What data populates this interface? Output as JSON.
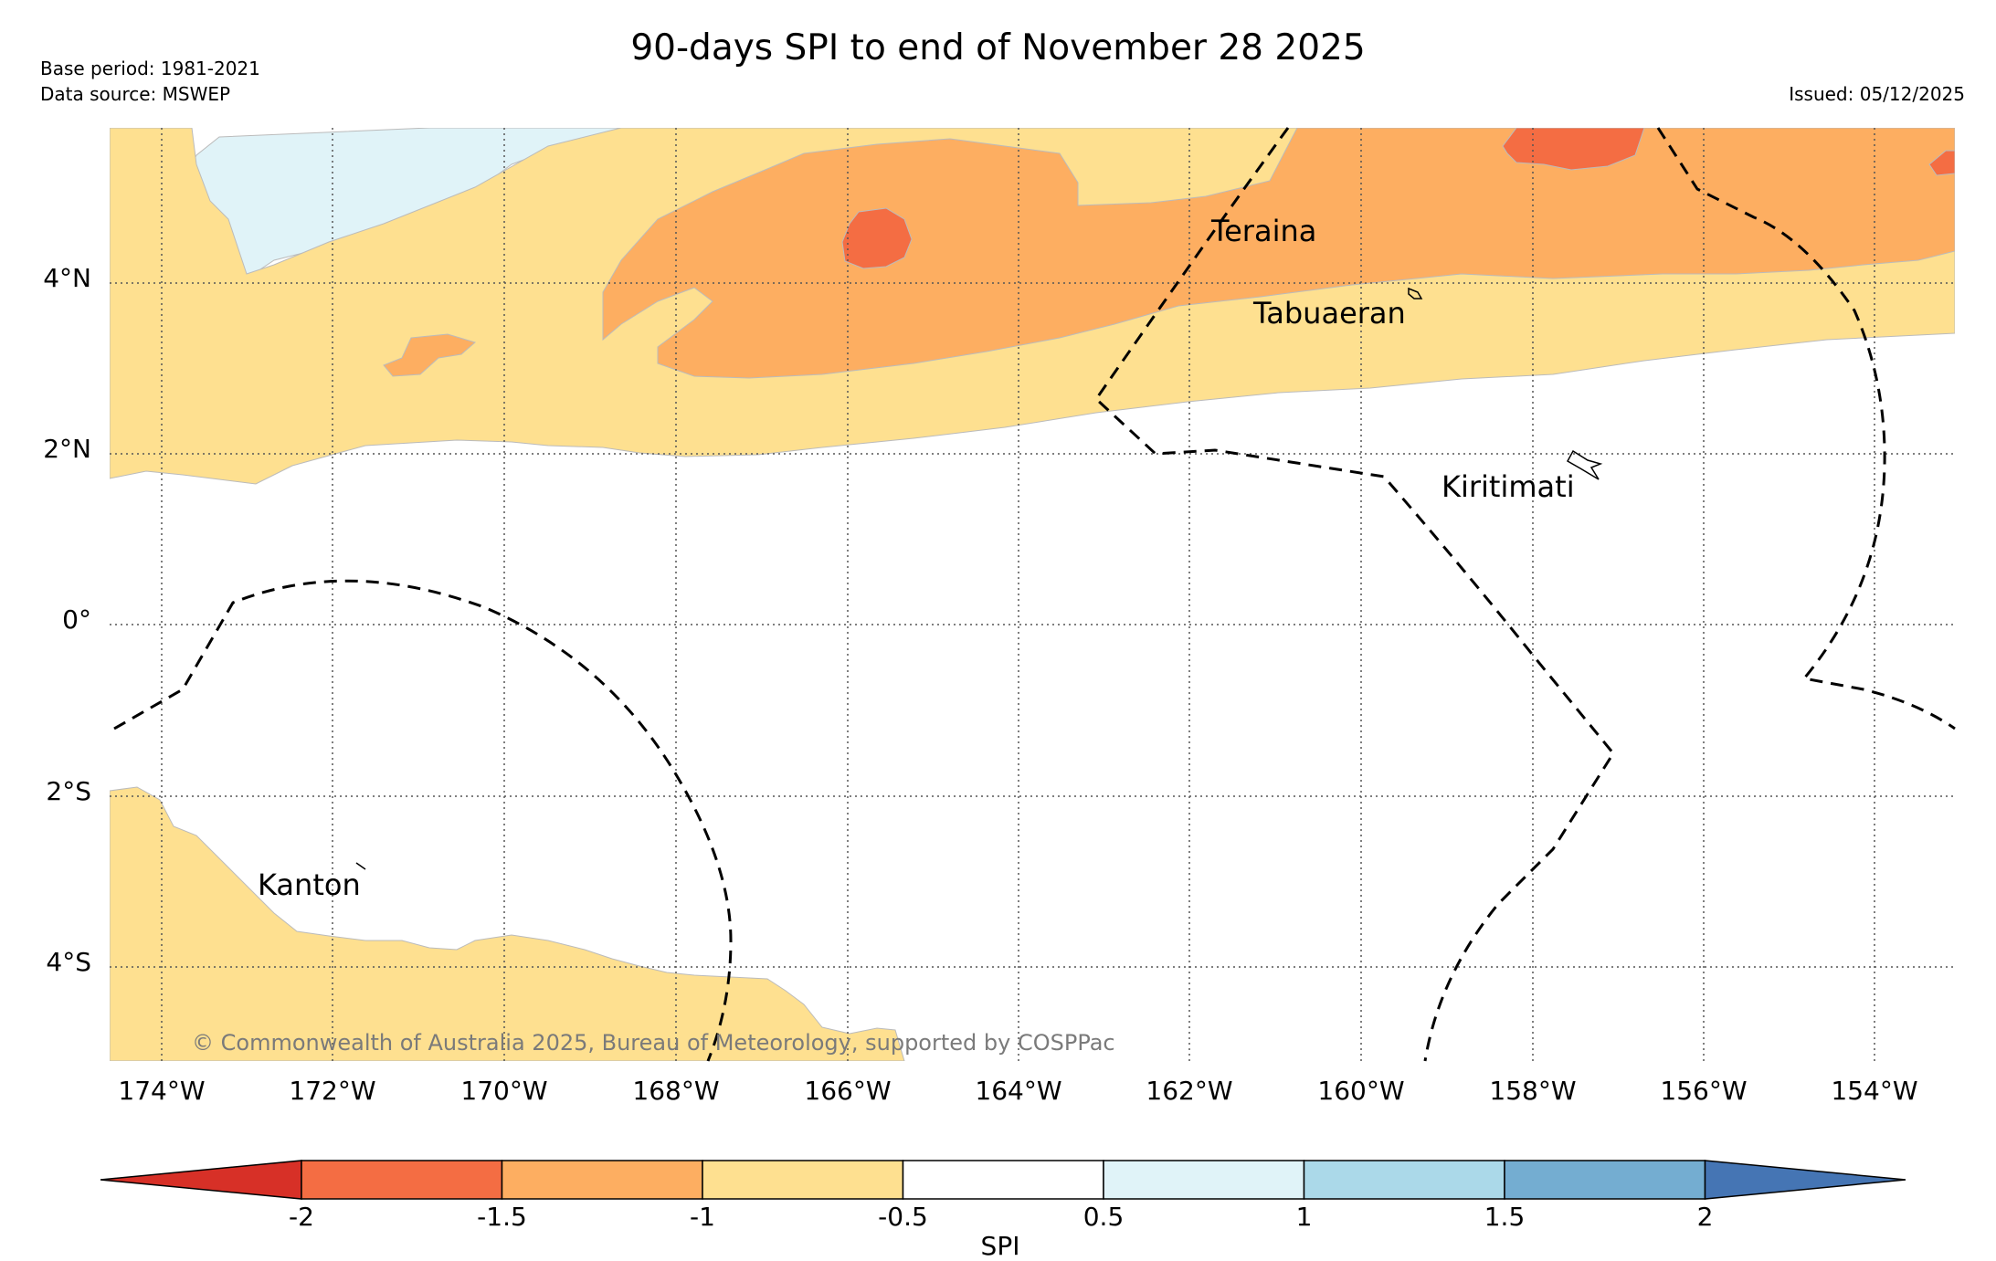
{
  "title": "90-days SPI to end of November 28 2025",
  "base_period": "Base period: 1981-2021",
  "data_source": "Data source: MSWEP",
  "issued": "Issued: 05/12/2025",
  "copyright": "© Commonwealth of Australia 2025, Bureau of Meteorology, supported by COSPPac",
  "x_ticks": [
    "174°W",
    "172°W",
    "170°W",
    "168°W",
    "166°W",
    "164°W",
    "162°W",
    "160°W",
    "158°W",
    "156°W",
    "154°W"
  ],
  "y_ticks": [
    "4°N",
    "2°N",
    "0°",
    "2°S",
    "4°S"
  ],
  "places": {
    "teraina": "Teraina",
    "tabuaeran": "Tabuaeran",
    "kiritimati": "Kiritimati",
    "kanton": "Kanton"
  },
  "colorbar": {
    "title": "SPI",
    "labels": [
      "-2",
      "-1.5",
      "-1",
      "-0.5",
      "0.5",
      "1",
      "1.5",
      "2"
    ],
    "colors": [
      "#d73027",
      "#f46d43",
      "#fdae61",
      "#fee090",
      "#ffffff",
      "#e0f3f8",
      "#abd9e9",
      "#74add1",
      "#4575b4"
    ]
  },
  "legend_categories": [
    "<= -2",
    "-2 to -1.5",
    "-1.5 to -1",
    "-1 to -0.5",
    "-0.5 to 0.5",
    "0.5 to 1",
    "1 to 1.5",
    "1.5 to 2",
    ">= 2"
  ]
}
